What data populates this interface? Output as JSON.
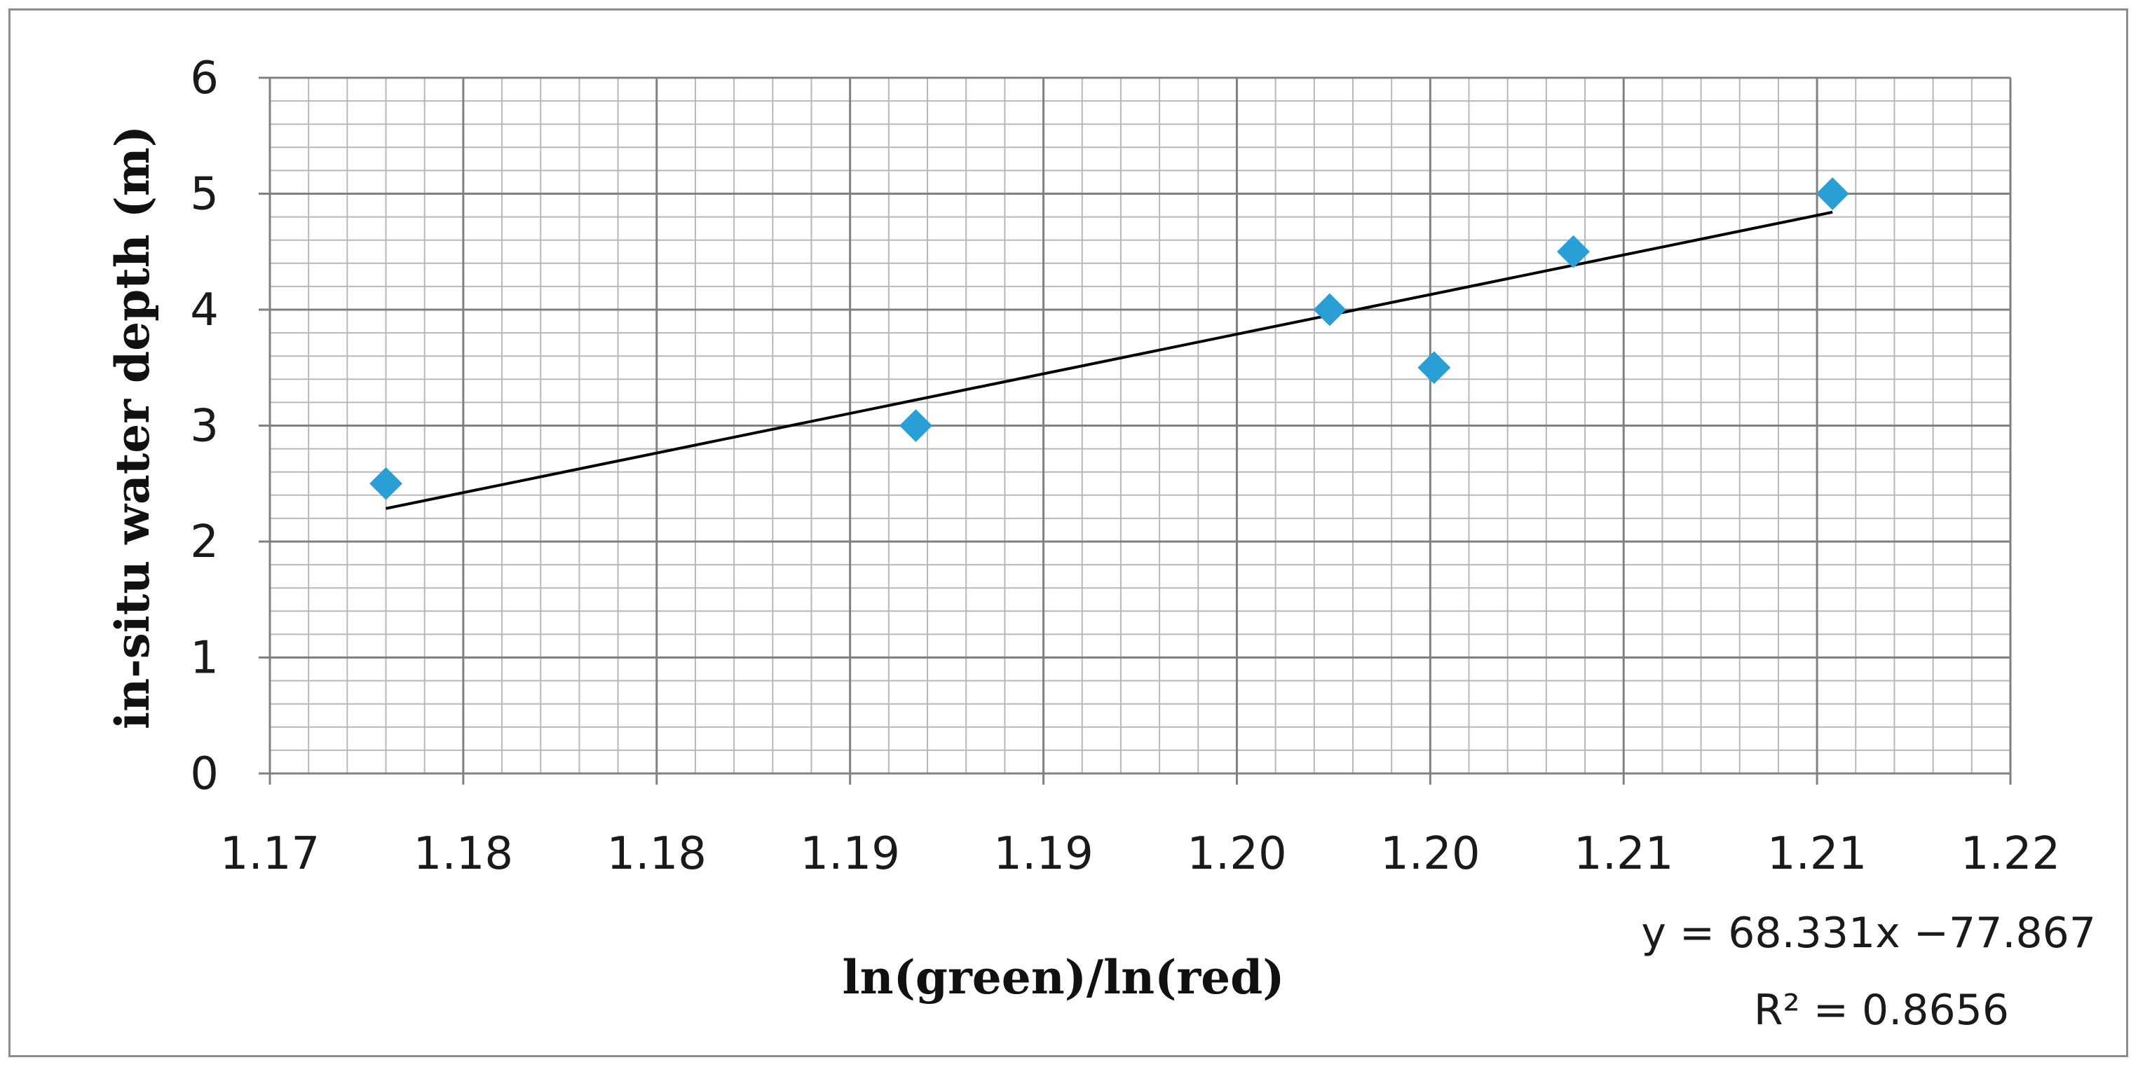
{
  "chart_data": {
    "type": "scatter",
    "xlabel": "ln(green)/ln(red)",
    "ylabel": "in-situ water depth (m)",
    "xlim": [
      1.17,
      1.215
    ],
    "ylim": [
      0,
      6
    ],
    "x_tick_values": [
      1.17,
      1.175,
      1.18,
      1.185,
      1.19,
      1.195,
      1.2,
      1.205,
      1.21,
      1.215
    ],
    "x_tick_labels": [
      "1.17",
      "1.18",
      "1.18",
      "1.19",
      "1.19",
      "1.20",
      "1.20",
      "1.21",
      "1.21",
      "1.22"
    ],
    "y_ticks": [
      0,
      1,
      2,
      3,
      4,
      5,
      6
    ],
    "grid": true,
    "minor_grid": true,
    "marker": "diamond",
    "marker_color": "#2a9fd6",
    "points": [
      {
        "x": 1.173,
        "y": 2.5
      },
      {
        "x": 1.1867,
        "y": 3.0
      },
      {
        "x": 1.1974,
        "y": 4.0
      },
      {
        "x": 1.2001,
        "y": 3.5
      },
      {
        "x": 1.2037,
        "y": 4.5
      },
      {
        "x": 1.2104,
        "y": 5.0
      }
    ],
    "trendline": {
      "type": "linear",
      "slope": 68.331,
      "intercept": -77.867,
      "x_range": [
        1.173,
        1.2104
      ],
      "color": "#000000"
    },
    "annotations": {
      "equation": "y = 68.331x −77.867",
      "r_squared": "R² = 0.8656"
    }
  }
}
